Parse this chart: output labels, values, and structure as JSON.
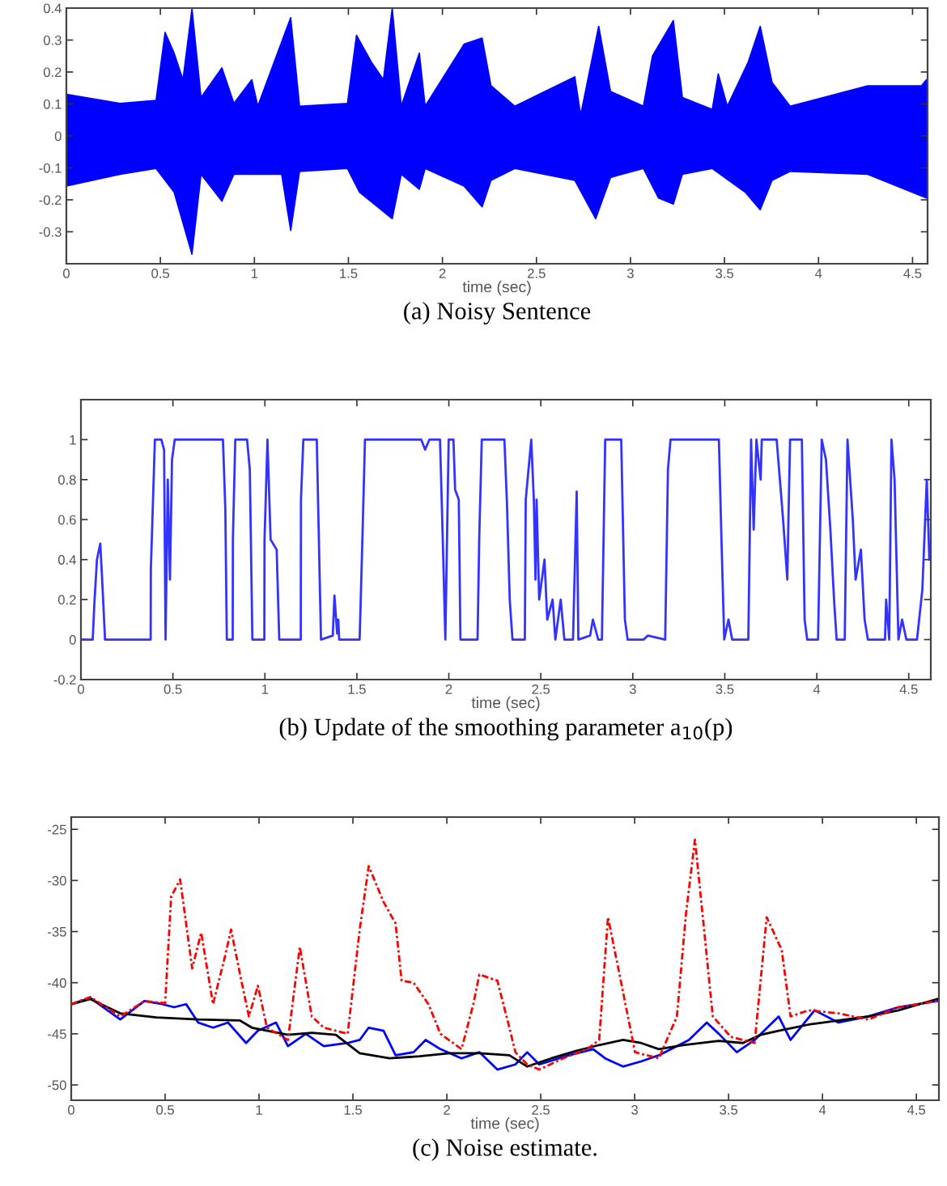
{
  "chart_data": [
    {
      "type": "area",
      "annotations": [
        "(a) Noisy Sentence"
      ],
      "xlabel": "time (sec)",
      "xlim": [
        0,
        4.58
      ],
      "xticks": [
        0,
        0.5,
        1,
        1.5,
        2,
        2.5,
        3,
        3.5,
        4,
        4.5
      ],
      "ylim": [
        -0.4,
        0.4
      ],
      "yticks": [
        -0.3,
        -0.2,
        -0.1,
        0,
        0.1,
        0.2,
        0.3,
        0.4
      ],
      "grid": false,
      "legend": false,
      "series": [
        {
          "color": "#0000ff",
          "x": [
            0,
            0.286,
            0.477,
            0.525,
            0.573,
            0.62,
            0.668,
            0.716,
            0.827,
            0.891,
            0.986,
            1.018,
            1.193,
            1.24,
            1.495,
            1.543,
            1.622,
            1.686,
            1.733,
            1.781,
            1.877,
            1.908,
            2.115,
            2.211,
            2.258,
            2.385,
            2.704,
            2.735,
            2.831,
            2.894,
            3.069,
            3.117,
            3.228,
            3.276,
            3.435,
            3.467,
            3.515,
            3.626,
            3.69,
            3.753,
            3.849,
            4.262,
            4.548,
            4.574
          ],
          "values": [
            0.13,
            0.102,
            0.111,
            0.324,
            0.259,
            0.176,
            0.398,
            0.12,
            0.213,
            0.102,
            0.176,
            0.093,
            0.37,
            0.093,
            0.102,
            0.315,
            0.231,
            0.176,
            0.4,
            0.093,
            0.259,
            0.093,
            0.287,
            0.306,
            0.157,
            0.093,
            0.185,
            0.065,
            0.343,
            0.139,
            0.093,
            0.25,
            0.361,
            0.12,
            0.083,
            0.194,
            0.093,
            0.231,
            0.343,
            0.167,
            0.093,
            0.157,
            0.157,
            0.176
          ]
        },
        {
          "color": "#0000ff",
          "x": [
            0,
            0.286,
            0.477,
            0.573,
            0.668,
            0.716,
            0.827,
            0.891,
            1.145,
            1.193,
            1.24,
            1.495,
            1.559,
            1.733,
            1.781,
            1.877,
            1.908,
            2.115,
            2.211,
            2.258,
            2.385,
            2.704,
            2.815,
            2.894,
            3.069,
            3.149,
            3.228,
            3.276,
            3.435,
            3.61,
            3.69,
            3.753,
            3.849,
            4.262,
            4.574
          ],
          "values": [
            -0.157,
            -0.12,
            -0.102,
            -0.176,
            -0.37,
            -0.12,
            -0.204,
            -0.12,
            -0.12,
            -0.296,
            -0.111,
            -0.102,
            -0.176,
            -0.259,
            -0.12,
            -0.167,
            -0.102,
            -0.157,
            -0.222,
            -0.139,
            -0.102,
            -0.139,
            -0.259,
            -0.13,
            -0.102,
            -0.194,
            -0.213,
            -0.12,
            -0.102,
            -0.176,
            -0.231,
            -0.139,
            -0.111,
            -0.12,
            -0.194
          ]
        }
      ]
    },
    {
      "type": "line",
      "annotations": [
        "(b) Update of the smoothing parameter a$_{10}$(p)"
      ],
      "xlabel": "time (sec)",
      "xlim": [
        0,
        4.62
      ],
      "xticks": [
        0,
        0.5,
        1,
        1.5,
        2,
        2.5,
        3,
        3.5,
        4,
        4.5
      ],
      "ylim": [
        -0.2,
        1.2
      ],
      "yticks": [
        -0.2,
        0,
        0.2,
        0.4,
        0.6,
        0.8,
        1
      ],
      "grid": false,
      "legend": false,
      "line_style": "solid",
      "marker": "none",
      "series": [
        {
          "color": "#3333ff",
          "x": [
            0,
            0.064,
            0.073,
            0.087,
            0.105,
            0.117,
            0.131,
            0.379,
            0.38,
            0.402,
            0.437,
            0.452,
            0.46,
            0.472,
            0.484,
            0.495,
            0.51,
            0.772,
            0.785,
            0.793,
            0.825,
            0.826,
            0.839,
            0.903,
            0.918,
            0.932,
            0.997,
            0.998,
            1.014,
            1.031,
            1.064,
            1.078,
            1.195,
            1.196,
            1.209,
            1.282,
            1.305,
            1.369,
            1.378,
            1.393,
            1.399,
            1.404,
            1.515,
            1.53,
            1.544,
            1.85,
            1.871,
            1.894,
            1.952,
            1.967,
            1.981,
            1.999,
            2.025,
            2.034,
            2.054,
            2.063,
            2.156,
            2.165,
            2.179,
            2.302,
            2.316,
            2.331,
            2.346,
            2.413,
            2.418,
            2.448,
            2.462,
            2.471,
            2.477,
            2.491,
            2.52,
            2.535,
            2.564,
            2.579,
            2.608,
            2.628,
            2.675,
            2.695,
            2.704,
            2.768,
            2.783,
            2.812,
            2.832,
            2.85,
            2.937,
            2.957,
            2.972,
            3.059,
            3.082,
            3.176,
            3.191,
            3.205,
            3.468,
            3.482,
            3.497,
            3.52,
            3.54,
            3.628,
            3.643,
            3.657,
            3.672,
            3.695,
            3.701,
            3.782,
            3.817,
            3.84,
            3.846,
            3.855,
            3.919,
            3.934,
            3.948,
            4.007,
            4.027,
            4.05,
            4.074,
            4.094,
            4.108,
            4.152,
            4.167,
            4.196,
            4.211,
            4.24,
            4.26,
            4.278,
            4.371,
            4.377,
            4.394,
            4.406,
            4.423,
            4.444,
            4.464,
            4.487,
            4.545,
            4.574,
            4.598,
            4.612
          ],
          "values": [
            0,
            0,
            0.18,
            0.4,
            0.48,
            0.27,
            0,
            0,
            0.35,
            1,
            1,
            0.95,
            0,
            0.8,
            0.3,
            0.9,
            1,
            1,
            0.65,
            0,
            0,
            0.5,
            1,
            1,
            0.85,
            0,
            0,
            0.5,
            1,
            0.5,
            0.45,
            0,
            0,
            0.7,
            1,
            1,
            0,
            0.02,
            0.22,
            0.03,
            0.1,
            0,
            0,
            0.5,
            1,
            1,
            0.95,
            1,
            1,
            0.5,
            0,
            1,
            1,
            0.75,
            0.7,
            0,
            0,
            0.5,
            1,
            1,
            0.68,
            0.2,
            0,
            0,
            0.7,
            1,
            0.7,
            0.3,
            0.7,
            0.2,
            0.4,
            0.1,
            0.2,
            0,
            0.2,
            0,
            0,
            0.74,
            0,
            0.02,
            0.1,
            0,
            0,
            1,
            1,
            0.1,
            0,
            0,
            0.02,
            0,
            0.85,
            1,
            1,
            0.5,
            0,
            0.1,
            0,
            0,
            1,
            0.55,
            1,
            0.8,
            1,
            1,
            0.6,
            0.3,
            0.6,
            1,
            1,
            0.1,
            0,
            0,
            1,
            0.9,
            0.55,
            0.2,
            0,
            0,
            1,
            0.6,
            0.3,
            0.45,
            0.1,
            0,
            0,
            0.2,
            0,
            1,
            0.8,
            0,
            0.1,
            0,
            0,
            0.25,
            0.8,
            0.4
          ]
        }
      ]
    },
    {
      "type": "line",
      "annotations": [
        "(c) Noise estimate."
      ],
      "xlabel": "time (sec)",
      "xlim": [
        0,
        4.62
      ],
      "xticks": [
        0,
        0.5,
        1,
        1.5,
        2,
        2.5,
        3,
        3.5,
        4,
        4.5
      ],
      "ylim": [
        -51.5,
        -23.8
      ],
      "yticks": [
        -50,
        -45,
        -40,
        -35,
        -30,
        -25
      ],
      "grid": false,
      "legend": false,
      "marker": "none",
      "series": [
        {
          "color": "#ff0000",
          "line_style": "dashed",
          "x": [
            0,
            0.102,
            0.261,
            0.389,
            0.5,
            0.532,
            0.58,
            0.644,
            0.692,
            0.755,
            0.819,
            0.851,
            0.899,
            0.946,
            0.994,
            1.042,
            1.154,
            1.217,
            1.281,
            1.345,
            1.472,
            1.536,
            1.584,
            1.663,
            1.727,
            1.759,
            1.823,
            1.902,
            1.966,
            2.078,
            2.141,
            2.173,
            2.269,
            2.333,
            2.365,
            2.428,
            2.492,
            2.619,
            2.747,
            2.811,
            2.858,
            2.938,
            3.002,
            3.129,
            3.225,
            3.273,
            3.321,
            3.368,
            3.416,
            3.512,
            3.639,
            3.703,
            3.783,
            3.83,
            3.926,
            4.085,
            4.245,
            4.404,
            4.611
          ],
          "values": [
            -42.1,
            -41.4,
            -43.3,
            -41.8,
            -42.0,
            -31.6,
            -29.9,
            -38.6,
            -35.1,
            -42.1,
            -37.4,
            -34.8,
            -39.2,
            -43.3,
            -40.3,
            -44.4,
            -45.6,
            -36.5,
            -43.3,
            -44.4,
            -45.0,
            -34.8,
            -28.6,
            -32.1,
            -34.2,
            -39.8,
            -40.0,
            -42.1,
            -45.0,
            -46.5,
            -42.1,
            -39.2,
            -39.8,
            -44.4,
            -46.8,
            -48.0,
            -48.5,
            -47.4,
            -46.5,
            -45.6,
            -33.6,
            -40.9,
            -46.8,
            -47.4,
            -43.3,
            -33.3,
            -26.0,
            -34.5,
            -43.3,
            -45.3,
            -45.9,
            -33.6,
            -36.8,
            -43.3,
            -42.7,
            -43.0,
            -43.6,
            -42.4,
            -41.8
          ]
        },
        {
          "color": "#0000ff",
          "line_style": "solid",
          "x": [
            0,
            0.102,
            0.261,
            0.389,
            0.484,
            0.548,
            0.612,
            0.676,
            0.755,
            0.835,
            0.931,
            0.994,
            1.09,
            1.154,
            1.249,
            1.345,
            1.472,
            1.536,
            1.584,
            1.663,
            1.727,
            1.823,
            1.887,
            1.966,
            2.078,
            2.173,
            2.269,
            2.365,
            2.428,
            2.492,
            2.651,
            2.779,
            2.843,
            2.938,
            3.034,
            3.129,
            3.289,
            3.384,
            3.448,
            3.544,
            3.639,
            3.767,
            3.83,
            3.958,
            4.085,
            4.245,
            4.404,
            4.611
          ],
          "values": [
            -42.1,
            -41.5,
            -43.6,
            -41.8,
            -42.1,
            -42.4,
            -42.1,
            -43.9,
            -44.4,
            -43.9,
            -45.9,
            -44.7,
            -43.9,
            -46.2,
            -45.0,
            -46.2,
            -45.9,
            -45.6,
            -44.4,
            -44.7,
            -47.1,
            -46.8,
            -45.6,
            -46.5,
            -47.4,
            -46.8,
            -48.5,
            -48.0,
            -46.8,
            -48.0,
            -47.1,
            -46.5,
            -47.4,
            -48.2,
            -47.7,
            -47.1,
            -45.6,
            -43.9,
            -45.0,
            -46.8,
            -45.6,
            -43.3,
            -45.6,
            -42.7,
            -43.9,
            -43.3,
            -42.4,
            -41.8
          ]
        },
        {
          "color": "#000000",
          "line_style": "solid",
          "x": [
            0,
            0.102,
            0.261,
            0.453,
            0.676,
            0.899,
            0.962,
            1.154,
            1.281,
            1.409,
            1.536,
            1.695,
            1.855,
            2.014,
            2.173,
            2.333,
            2.428,
            2.556,
            2.683,
            2.811,
            2.938,
            3.034,
            3.129,
            3.257,
            3.448,
            3.576,
            3.671,
            3.767,
            3.926,
            4.085,
            4.245,
            4.404,
            4.611
          ],
          "values": [
            -42.1,
            -41.6,
            -43.0,
            -43.4,
            -43.6,
            -43.7,
            -44.4,
            -45.1,
            -44.9,
            -45.1,
            -46.9,
            -47.4,
            -47.2,
            -46.9,
            -46.9,
            -47.1,
            -48.2,
            -47.4,
            -46.7,
            -46.1,
            -45.6,
            -45.9,
            -46.5,
            -46.1,
            -45.7,
            -45.9,
            -45.1,
            -44.7,
            -44.1,
            -43.7,
            -43.3,
            -42.7,
            -41.6
          ]
        }
      ]
    }
  ]
}
